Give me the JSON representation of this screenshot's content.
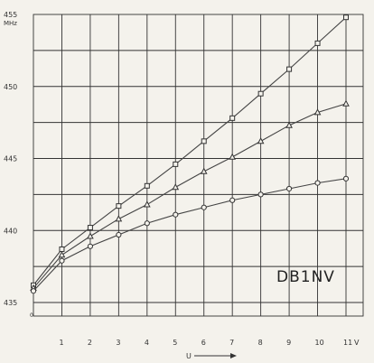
{
  "chart_data": {
    "type": "line",
    "title": "",
    "xlabel": "U",
    "ylabel": "",
    "x_unit": "V",
    "y_unit": "MHz",
    "x_ticks": [
      "1",
      "2",
      "3",
      "4",
      "5",
      "6",
      "7",
      "8",
      "9",
      "10",
      "11"
    ],
    "y_ticks": [
      "435",
      "440",
      "445",
      "450",
      "455"
    ],
    "x_origin_label": "0",
    "xlim": [
      0,
      11.5
    ],
    "ylim": [
      433.5,
      455
    ],
    "grid": true,
    "annotation": "DB1NV",
    "series": [
      {
        "marker": "square",
        "x": [
          0,
          1,
          2,
          3,
          4,
          5,
          6,
          7,
          8,
          9,
          10,
          11
        ],
        "y": [
          436.2,
          438.7,
          440.2,
          441.7,
          443.1,
          444.6,
          446.2,
          447.8,
          449.5,
          451.2,
          453.0,
          454.8
        ]
      },
      {
        "marker": "triangle",
        "x": [
          0,
          1,
          2,
          3,
          4,
          5,
          6,
          7,
          8,
          9,
          10,
          11
        ],
        "y": [
          436.0,
          438.3,
          439.6,
          440.8,
          441.8,
          443.0,
          444.1,
          445.1,
          446.2,
          447.3,
          448.2,
          448.8
        ]
      },
      {
        "marker": "circle",
        "x": [
          0,
          1,
          2,
          3,
          4,
          5,
          6,
          7,
          8,
          9,
          10,
          11
        ],
        "y": [
          435.8,
          437.9,
          438.9,
          439.7,
          440.5,
          441.1,
          441.6,
          442.1,
          442.5,
          442.9,
          443.3,
          443.6
        ]
      }
    ]
  }
}
